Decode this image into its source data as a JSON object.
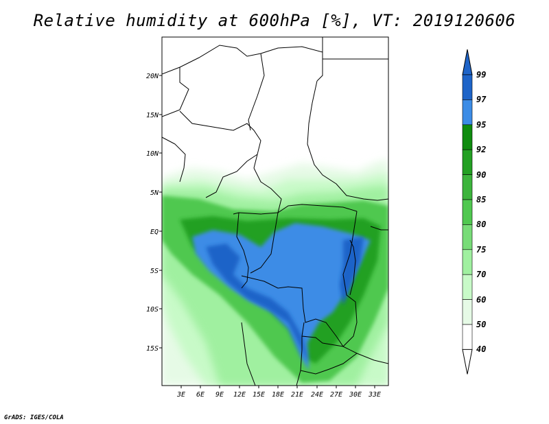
{
  "title": "Relative humidity at 600hPa [%], VT: 2019120606",
  "credit": "GrADS: IGES/COLA",
  "map": {
    "lat_labels": [
      "20N",
      "15N",
      "10N",
      "5N",
      "EQ",
      "5S",
      "10S",
      "15S"
    ],
    "lon_labels": [
      "3E",
      "6E",
      "9E",
      "12E",
      "15E",
      "18E",
      "21E",
      "24E",
      "27E",
      "30E",
      "33E"
    ]
  },
  "colorbar": {
    "levels": [
      "99",
      "97",
      "95",
      "92",
      "90",
      "85",
      "80",
      "75",
      "70",
      "60",
      "50",
      "40"
    ],
    "colors": [
      "#1e64c8",
      "#3c8ce6",
      "#0f8c0f",
      "#23a023",
      "#3cb43c",
      "#50c850",
      "#78dc78",
      "#a0f0a0",
      "#c8fac8",
      "#e6fae6",
      "#ffffff"
    ],
    "top_arrow_color": "#1e64c8",
    "bottom_arrow_color": "#ffffff"
  }
}
